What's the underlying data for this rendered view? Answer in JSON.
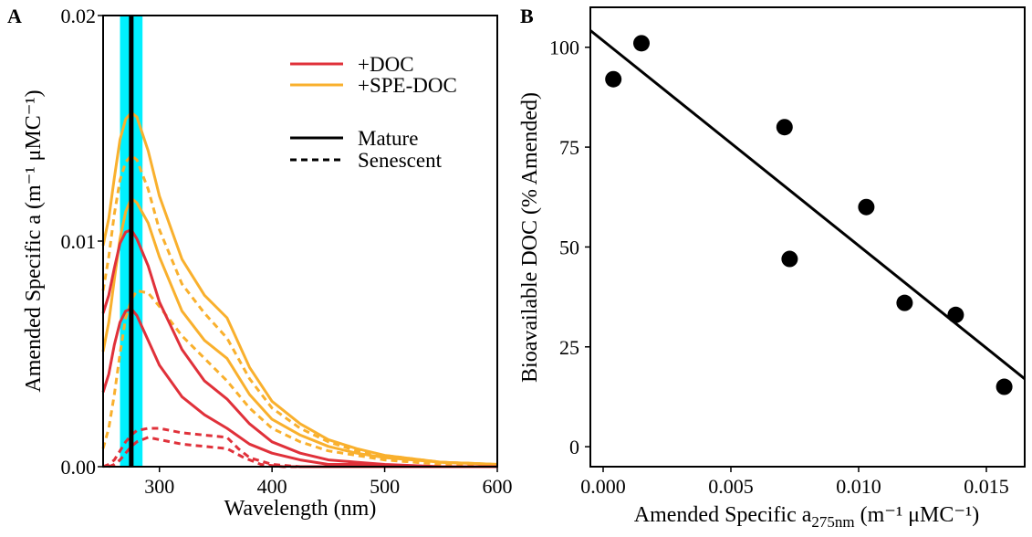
{
  "panels": [
    {
      "letter": "A",
      "chart_data": {
        "type": "line",
        "xlabel": "Wavelength (nm)",
        "ylabel": "Amended Specific a (m⁻¹ μMC⁻¹)",
        "xlim": [
          250,
          600
        ],
        "ylim": [
          0,
          0.02
        ],
        "xticks": [
          300,
          400,
          500,
          600
        ],
        "yticks": [
          0.0,
          0.01,
          0.02
        ],
        "ytick_labels": [
          "0.00",
          "0.01",
          "0.02"
        ],
        "highlight_band": {
          "x": [
            265,
            285
          ],
          "color": "#00f0ff"
        },
        "vertical_line": {
          "x": 275,
          "color": "#000000"
        },
        "legend": {
          "placement": "top-right",
          "entries": [
            {
              "label": "+DOC",
              "color": "#e0313a",
              "style": "solid"
            },
            {
              "label": "+SPE-DOC",
              "color": "#f9b02d",
              "style": "solid"
            },
            {
              "label": "Mature",
              "color": "#000000",
              "style": "solid"
            },
            {
              "label": "Senescent",
              "color": "#000000",
              "style": "dashed"
            }
          ]
        },
        "series": [
          {
            "treatment": "+SPE-DOC",
            "stage": "Mature",
            "color": "#f9b02d",
            "style": "solid",
            "points": [
              [
                250,
                0.0098
              ],
              [
                255,
                0.011
              ],
              [
                260,
                0.0128
              ],
              [
                265,
                0.0145
              ],
              [
                270,
                0.0154
              ],
              [
                275,
                0.0157
              ],
              [
                280,
                0.0155
              ],
              [
                290,
                0.014
              ],
              [
                300,
                0.012
              ],
              [
                320,
                0.0092
              ],
              [
                340,
                0.0076
              ],
              [
                360,
                0.0066
              ],
              [
                380,
                0.0044
              ],
              [
                400,
                0.0029
              ],
              [
                425,
                0.0019
              ],
              [
                450,
                0.0012
              ],
              [
                475,
                0.0008
              ],
              [
                500,
                0.0005
              ],
              [
                550,
                0.0002
              ],
              [
                600,
                0.0001
              ]
            ]
          },
          {
            "treatment": "+SPE-DOC",
            "stage": "Mature",
            "color": "#f9b02d",
            "style": "solid",
            "points": [
              [
                250,
                0.0051
              ],
              [
                255,
                0.0064
              ],
              [
                260,
                0.0083
              ],
              [
                265,
                0.0101
              ],
              [
                270,
                0.0113
              ],
              [
                275,
                0.0119
              ],
              [
                280,
                0.0117
              ],
              [
                290,
                0.0108
              ],
              [
                300,
                0.0093
              ],
              [
                320,
                0.0069
              ],
              [
                340,
                0.0056
              ],
              [
                360,
                0.0048
              ],
              [
                380,
                0.0032
              ],
              [
                400,
                0.0021
              ],
              [
                425,
                0.0014
              ],
              [
                450,
                0.0009
              ],
              [
                475,
                0.0006
              ],
              [
                500,
                0.0004
              ],
              [
                550,
                0.0002
              ],
              [
                600,
                0.0001
              ]
            ]
          },
          {
            "treatment": "+SPE-DOC",
            "stage": "Senescent",
            "color": "#f9b02d",
            "style": "dashed",
            "points": [
              [
                250,
                0.0078
              ],
              [
                255,
                0.0093
              ],
              [
                260,
                0.0112
              ],
              [
                265,
                0.0127
              ],
              [
                270,
                0.0135
              ],
              [
                275,
                0.0138
              ],
              [
                280,
                0.0136
              ],
              [
                290,
                0.0123
              ],
              [
                300,
                0.0105
              ],
              [
                320,
                0.0081
              ],
              [
                340,
                0.0068
              ],
              [
                360,
                0.0057
              ],
              [
                380,
                0.0039
              ],
              [
                400,
                0.0026
              ],
              [
                425,
                0.0017
              ],
              [
                450,
                0.0011
              ],
              [
                475,
                0.0007
              ],
              [
                500,
                0.0005
              ],
              [
                550,
                0.0002
              ],
              [
                600,
                0.0001
              ]
            ]
          },
          {
            "treatment": "+SPE-DOC",
            "stage": "Senescent",
            "color": "#f9b02d",
            "style": "dashed",
            "points": [
              [
                250,
                0.0008
              ],
              [
                255,
                0.0017
              ],
              [
                260,
                0.0032
              ],
              [
                265,
                0.005
              ],
              [
                270,
                0.0066
              ],
              [
                275,
                0.0074
              ],
              [
                280,
                0.0078
              ],
              [
                290,
                0.0077
              ],
              [
                300,
                0.0071
              ],
              [
                320,
                0.0058
              ],
              [
                340,
                0.0048
              ],
              [
                360,
                0.0038
              ],
              [
                380,
                0.0026
              ],
              [
                400,
                0.0017
              ],
              [
                425,
                0.0011
              ],
              [
                450,
                0.0007
              ],
              [
                475,
                0.0005
              ],
              [
                500,
                0.0003
              ],
              [
                550,
                0.0001
              ],
              [
                600,
                0.0001
              ]
            ]
          },
          {
            "treatment": "+DOC",
            "stage": "Mature",
            "color": "#e0313a",
            "style": "solid",
            "points": [
              [
                250,
                0.0068
              ],
              [
                255,
                0.0076
              ],
              [
                260,
                0.0088
              ],
              [
                265,
                0.0099
              ],
              [
                270,
                0.0104
              ],
              [
                275,
                0.0105
              ],
              [
                280,
                0.0101
              ],
              [
                290,
                0.0089
              ],
              [
                300,
                0.0073
              ],
              [
                320,
                0.0052
              ],
              [
                340,
                0.0038
              ],
              [
                360,
                0.003
              ],
              [
                380,
                0.0019
              ],
              [
                400,
                0.0011
              ],
              [
                425,
                0.0006
              ],
              [
                450,
                0.0003
              ],
              [
                475,
                0.0002
              ],
              [
                500,
                0.0001
              ],
              [
                550,
                0.0
              ],
              [
                600,
                0.0
              ]
            ]
          },
          {
            "treatment": "+DOC",
            "stage": "Mature",
            "color": "#e0313a",
            "style": "solid",
            "points": [
              [
                250,
                0.0033
              ],
              [
                255,
                0.0041
              ],
              [
                260,
                0.0054
              ],
              [
                265,
                0.0064
              ],
              [
                270,
                0.0069
              ],
              [
                275,
                0.007
              ],
              [
                280,
                0.0067
              ],
              [
                290,
                0.0056
              ],
              [
                300,
                0.0045
              ],
              [
                320,
                0.0031
              ],
              [
                340,
                0.0023
              ],
              [
                360,
                0.0017
              ],
              [
                380,
                0.001
              ],
              [
                400,
                0.0006
              ],
              [
                425,
                0.0003
              ],
              [
                450,
                0.0001
              ],
              [
                475,
                0.0001
              ],
              [
                500,
                0.0
              ],
              [
                550,
                0.0
              ],
              [
                600,
                0.0
              ]
            ]
          },
          {
            "treatment": "+DOC",
            "stage": "Senescent",
            "color": "#e0313a",
            "style": "dashed",
            "points": [
              [
                250,
                0.0
              ],
              [
                255,
                0.0001
              ],
              [
                260,
                0.0003
              ],
              [
                265,
                0.0007
              ],
              [
                270,
                0.0011
              ],
              [
                275,
                0.0014
              ],
              [
                280,
                0.0016
              ],
              [
                290,
                0.0017
              ],
              [
                300,
                0.0017
              ],
              [
                320,
                0.0015
              ],
              [
                340,
                0.0014
              ],
              [
                360,
                0.0013
              ],
              [
                370,
                0.0008
              ],
              [
                380,
                0.0004
              ],
              [
                400,
                0.0001
              ],
              [
                425,
                0.0
              ],
              [
                450,
                0.0
              ],
              [
                500,
                0.0
              ],
              [
                600,
                0.0
              ]
            ]
          },
          {
            "treatment": "+DOC",
            "stage": "Senescent",
            "color": "#e0313a",
            "style": "dashed",
            "points": [
              [
                255,
                0.0
              ],
              [
                260,
                0.0001
              ],
              [
                265,
                0.0003
              ],
              [
                270,
                0.0006
              ],
              [
                275,
                0.0009
              ],
              [
                280,
                0.0011
              ],
              [
                290,
                0.0013
              ],
              [
                300,
                0.0012
              ],
              [
                320,
                0.001
              ],
              [
                340,
                0.0009
              ],
              [
                360,
                0.0008
              ],
              [
                375,
                0.0004
              ],
              [
                390,
                0.0001
              ],
              [
                410,
                0.0
              ],
              [
                600,
                0.0
              ]
            ]
          }
        ]
      }
    },
    {
      "letter": "B",
      "chart_data": {
        "type": "scatter",
        "xlabel_main": "Amended Specific a",
        "xlabel_sub": "275nm",
        "xlabel_units": "(m⁻¹ μMC⁻¹)",
        "ylabel": "Bioavailable DOC (% Amended)",
        "xlim": [
          -0.0005,
          0.0165
        ],
        "ylim": [
          -5,
          110
        ],
        "xticks": [
          0.0,
          0.005,
          0.01,
          0.015
        ],
        "xtick_labels": [
          "0.000",
          "0.005",
          "0.010",
          "0.015"
        ],
        "yticks": [
          0,
          25,
          50,
          75,
          100
        ],
        "points": [
          [
            0.0004,
            92
          ],
          [
            0.0015,
            101
          ],
          [
            0.0071,
            80
          ],
          [
            0.0073,
            47
          ],
          [
            0.0103,
            60
          ],
          [
            0.0118,
            36
          ],
          [
            0.0138,
            33
          ],
          [
            0.0157,
            15
          ]
        ],
        "fit_line": {
          "x": [
            -0.0005,
            0.0165
          ],
          "y": [
            104.2,
            17.0
          ]
        }
      }
    }
  ]
}
